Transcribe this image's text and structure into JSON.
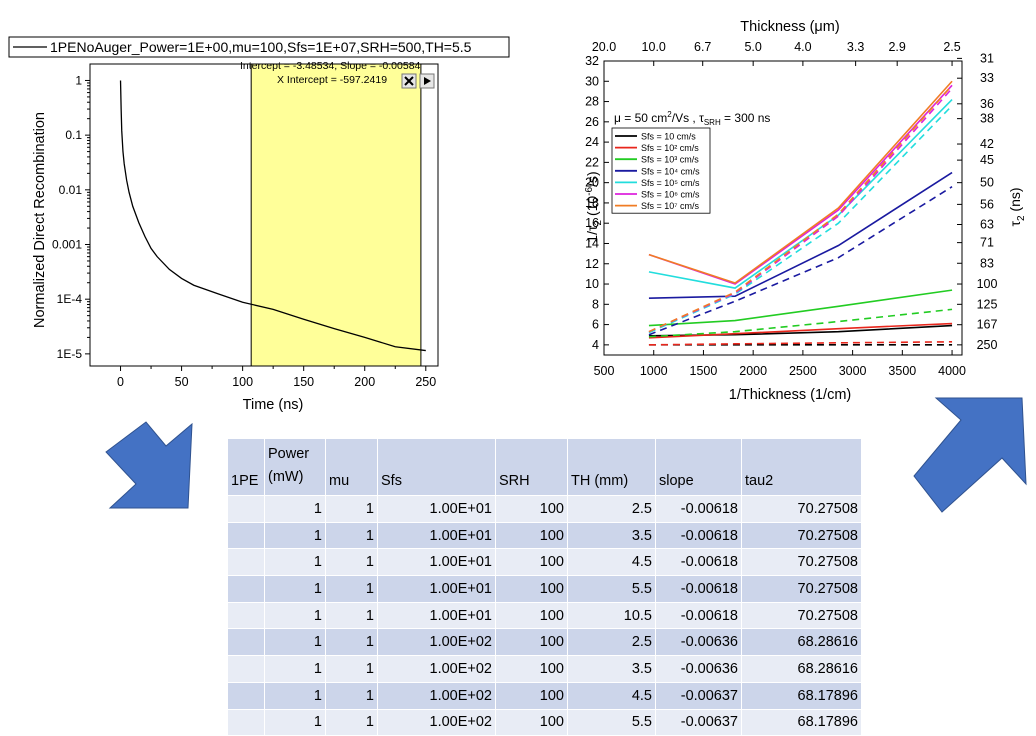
{
  "left_chart": {
    "legend_entry": "1PENoAuger_Power=1E+00,mu=100,Sfs=1E+07,SRH=500,TH=5.5",
    "fit_text": "Intercept = -3.48534, Slope = -0.00584",
    "x_intercept_text": "X Intercept = -597.2419",
    "close_icon": "close-icon",
    "arrow_icon": "play-right-icon",
    "highlight_color": "#ffff99"
  },
  "right_chart": {
    "annotation": "μ = 50 cm²/Vs , τSRH = 300 ns",
    "top_axis_label": "Thickness (μm)",
    "top_ticks": [
      "20.0",
      "10.0",
      "6.7",
      "5.0",
      "4.0",
      "3.3",
      "2.9",
      "2.5"
    ],
    "right_axis_label": "τ2 (ns)",
    "right_ticks": [
      "31",
      "33",
      "36",
      "38",
      "42",
      "45",
      "50",
      "56",
      "63",
      "71",
      "83",
      "100",
      "125",
      "167",
      "250"
    ]
  },
  "chart_data": [
    {
      "type": "line",
      "title": "",
      "xlabel": "Time (ns)",
      "ylabel": "Normalized Direct Recombination",
      "xlim": [
        -25,
        260
      ],
      "ylim": [
        6e-06,
        2
      ],
      "yscale": "log",
      "x_ticks": [
        "0",
        "50",
        "100",
        "150",
        "200",
        "250"
      ],
      "y_ticks": [
        "1",
        "0.1",
        "0.01",
        "0.001",
        "1E-4",
        "1E-5"
      ],
      "highlight_region": [
        107,
        246
      ],
      "series": [
        {
          "name": "1PENoAuger_Power=1E+00,mu=100,Sfs=1E+07,SRH=500,TH=5.5",
          "color": "#000000",
          "x": [
            0,
            0.5,
            1,
            2,
            3,
            5,
            7,
            10,
            15,
            20,
            25,
            30,
            40,
            50,
            60,
            80,
            100,
            125,
            150,
            175,
            200,
            225,
            250
          ],
          "y": [
            1,
            0.3,
            0.12,
            0.05,
            0.03,
            0.015,
            0.009,
            0.005,
            0.0025,
            0.0014,
            0.00085,
            0.0006,
            0.00035,
            0.00024,
            0.00018,
            0.000125,
            8.8e-05,
            6.5e-05,
            4.3e-05,
            2.9e-05,
            2e-05,
            1.35e-05,
            1.15e-05
          ]
        }
      ]
    },
    {
      "type": "line",
      "title": "",
      "xlabel": "1/Thickness (1/cm)",
      "ylabel": "1/τ2 (10⁻⁶/s)",
      "xlim": [
        500,
        4100
      ],
      "ylim": [
        3,
        32
      ],
      "x_ticks": [
        "500",
        "1000",
        "1500",
        "2000",
        "2500",
        "3000",
        "3500",
        "4000"
      ],
      "y_ticks": [
        "4",
        "6",
        "8",
        "10",
        "12",
        "14",
        "16",
        "18",
        "20",
        "22",
        "24",
        "26",
        "28",
        "30",
        "32"
      ],
      "legend_position": "upper-left",
      "series": [
        {
          "name": "Sfs = 10 cm/s",
          "color": "#000000",
          "x": [
            952,
            1818,
            2857,
            4000
          ],
          "y": [
            4.9,
            5.0,
            5.3,
            5.9
          ],
          "dashed_y": [
            4.0,
            4.0,
            4.0,
            4.0
          ]
        },
        {
          "name": "Sfs = 10² cm/s",
          "color": "#e8261c",
          "x": [
            952,
            1818,
            2857,
            4000
          ],
          "y": [
            4.7,
            5.1,
            5.6,
            6.1
          ],
          "dashed_y": [
            4.0,
            4.1,
            4.2,
            4.3
          ]
        },
        {
          "name": "Sfs = 10³ cm/s",
          "color": "#22cc22",
          "x": [
            952,
            1818,
            2857,
            4000
          ],
          "y": [
            5.9,
            6.4,
            7.8,
            9.4
          ],
          "dashed_y": [
            4.8,
            5.3,
            6.3,
            7.5
          ]
        },
        {
          "name": "Sfs = 10⁴ cm/s",
          "color": "#1a1aa0",
          "x": [
            952,
            1818,
            2857,
            4000
          ],
          "y": [
            8.6,
            8.8,
            13.8,
            21.0
          ],
          "dashed_y": [
            5.0,
            8.3,
            12.6,
            19.6
          ]
        },
        {
          "name": "Sfs = 10⁵ cm/s",
          "color": "#22dddd",
          "x": [
            952,
            1818,
            2857,
            4000
          ],
          "y": [
            11.2,
            9.6,
            16.8,
            28.2
          ],
          "dashed_y": [
            5.2,
            9.0,
            16.0,
            27.6
          ]
        },
        {
          "name": "Sfs = 10⁶ cm/s",
          "color": "#dd22dd",
          "x": [
            952,
            1818,
            2857,
            4000
          ],
          "y": [
            12.9,
            10.0,
            17.3,
            29.6
          ],
          "dashed_y": [
            5.3,
            9.1,
            16.7,
            29.3
          ]
        },
        {
          "name": "Sfs = 10⁷ cm/s",
          "color": "#f07c24",
          "x": [
            952,
            1818,
            2857,
            4000
          ],
          "y": [
            12.9,
            10.1,
            17.5,
            30.0
          ],
          "dashed_y": [
            5.3,
            9.2,
            16.9,
            29.6
          ]
        }
      ]
    },
    {
      "type": "table",
      "columns": [
        "1PE",
        "Power (mW)",
        "mu",
        "Sfs",
        "SRH",
        "TH (mm)",
        "slope",
        "tau2"
      ],
      "rows": [
        [
          "",
          "1",
          "1",
          "1.00E+01",
          "100",
          "2.5",
          "-0.00618",
          "70.27508"
        ],
        [
          "",
          "1",
          "1",
          "1.00E+01",
          "100",
          "3.5",
          "-0.00618",
          "70.27508"
        ],
        [
          "",
          "1",
          "1",
          "1.00E+01",
          "100",
          "4.5",
          "-0.00618",
          "70.27508"
        ],
        [
          "",
          "1",
          "1",
          "1.00E+01",
          "100",
          "5.5",
          "-0.00618",
          "70.27508"
        ],
        [
          "",
          "1",
          "1",
          "1.00E+01",
          "100",
          "10.5",
          "-0.00618",
          "70.27508"
        ],
        [
          "",
          "1",
          "1",
          "1.00E+02",
          "100",
          "2.5",
          "-0.00636",
          "68.28616"
        ],
        [
          "",
          "1",
          "1",
          "1.00E+02",
          "100",
          "3.5",
          "-0.00636",
          "68.28616"
        ],
        [
          "",
          "1",
          "1",
          "1.00E+02",
          "100",
          "4.5",
          "-0.00637",
          "68.17896"
        ],
        [
          "",
          "1",
          "1",
          "1.00E+02",
          "100",
          "5.5",
          "-0.00637",
          "68.17896"
        ]
      ]
    }
  ],
  "arrows": {
    "color": "#4472c4",
    "icons": [
      "arrow-down-right-icon",
      "arrow-up-right-icon"
    ]
  }
}
